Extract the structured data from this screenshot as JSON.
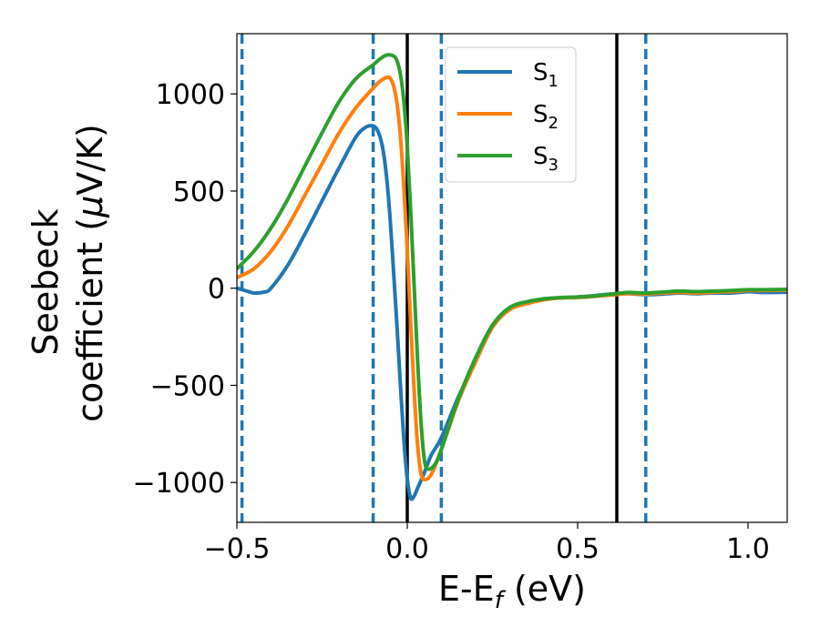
{
  "chart_data": {
    "type": "line",
    "title": "",
    "xlabel": "E-E",
    "xlabel_sub": "f",
    "xlabel_unit": " (eV)",
    "ylabel_line1": "Seebeck",
    "ylabel_line2": "coefficient  (",
    "ylabel_mu": "μ",
    "ylabel_unit": "V/K)",
    "xlim": [
      -0.5,
      1.115
    ],
    "ylim": [
      -1205,
      1310
    ],
    "xticks": [
      -0.5,
      0.0,
      0.5,
      1.0
    ],
    "xtick_labels": [
      "−0.5",
      "0.0",
      "0.5",
      "1.0"
    ],
    "yticks": [
      -1000,
      -500,
      0,
      500,
      1000
    ],
    "ytick_labels": [
      "−1000",
      "−500",
      "0",
      "500",
      "1000"
    ],
    "grid": false,
    "legend_placement": "top-center",
    "vlines_solid": [
      0.0,
      0.615
    ],
    "vlines_dashed": [
      -0.485,
      -0.1,
      0.1,
      0.7
    ],
    "vline_solid_color": "#000000",
    "vline_dashed_color": "#1f77b4",
    "series": [
      {
        "name": "S",
        "sub": "1",
        "color": "#1f77b4",
        "x": [
          -0.5,
          -0.47,
          -0.45,
          -0.42,
          -0.4,
          -0.35,
          -0.3,
          -0.25,
          -0.2,
          -0.15,
          -0.12,
          -0.1,
          -0.09,
          -0.08,
          -0.07,
          -0.06,
          -0.05,
          -0.04,
          -0.03,
          -0.02,
          -0.01,
          0.0,
          0.01,
          0.02,
          0.03,
          0.05,
          0.07,
          0.1,
          0.15,
          0.2,
          0.25,
          0.3,
          0.35,
          0.4,
          0.45,
          0.5,
          0.55,
          0.6,
          0.65,
          0.7,
          0.75,
          0.8,
          0.85,
          0.9,
          0.95,
          1.0,
          1.05,
          1.115
        ],
        "values": [
          0,
          -15,
          -25,
          -20,
          0,
          120,
          280,
          450,
          620,
          780,
          830,
          835,
          820,
          780,
          700,
          560,
          350,
          80,
          -200,
          -500,
          -780,
          -980,
          -1080,
          -1070,
          -1030,
          -950,
          -860,
          -770,
          -560,
          -380,
          -200,
          -110,
          -75,
          -55,
          -50,
          -45,
          -38,
          -30,
          -28,
          -33,
          -30,
          -25,
          -28,
          -24,
          -25,
          -18,
          -22,
          -20
        ]
      },
      {
        "name": "S",
        "sub": "2",
        "color": "#ff7f0e",
        "x": [
          -0.5,
          -0.45,
          -0.4,
          -0.35,
          -0.3,
          -0.25,
          -0.2,
          -0.15,
          -0.1,
          -0.08,
          -0.06,
          -0.05,
          -0.04,
          -0.03,
          -0.02,
          -0.01,
          0.0,
          0.01,
          0.02,
          0.03,
          0.04,
          0.05,
          0.07,
          0.1,
          0.15,
          0.2,
          0.25,
          0.3,
          0.35,
          0.4,
          0.45,
          0.5,
          0.55,
          0.6,
          0.65,
          0.7,
          0.75,
          0.8,
          0.85,
          0.9,
          0.95,
          1.0,
          1.05,
          1.115
        ],
        "values": [
          55,
          100,
          190,
          320,
          480,
          640,
          800,
          930,
          1030,
          1065,
          1085,
          1080,
          1040,
          950,
          780,
          520,
          200,
          -180,
          -520,
          -800,
          -950,
          -985,
          -960,
          -830,
          -580,
          -380,
          -200,
          -110,
          -80,
          -60,
          -50,
          -48,
          -42,
          -35,
          -28,
          -30,
          -25,
          -22,
          -25,
          -20,
          -18,
          -12,
          -12,
          -10
        ]
      },
      {
        "name": "S",
        "sub": "3",
        "color": "#2ca02c",
        "x": [
          -0.5,
          -0.45,
          -0.4,
          -0.35,
          -0.3,
          -0.25,
          -0.2,
          -0.15,
          -0.1,
          -0.08,
          -0.06,
          -0.04,
          -0.03,
          -0.02,
          -0.01,
          0.0,
          0.01,
          0.02,
          0.03,
          0.04,
          0.05,
          0.06,
          0.08,
          0.1,
          0.15,
          0.2,
          0.25,
          0.3,
          0.35,
          0.4,
          0.45,
          0.5,
          0.55,
          0.6,
          0.65,
          0.7,
          0.75,
          0.8,
          0.85,
          0.9,
          0.95,
          1.0,
          1.05,
          1.115
        ],
        "values": [
          100,
          190,
          310,
          460,
          630,
          800,
          960,
          1080,
          1150,
          1180,
          1200,
          1195,
          1170,
          1100,
          960,
          730,
          400,
          20,
          -360,
          -680,
          -880,
          -930,
          -910,
          -830,
          -570,
          -360,
          -190,
          -100,
          -70,
          -55,
          -48,
          -45,
          -40,
          -30,
          -22,
          -25,
          -20,
          -15,
          -18,
          -15,
          -12,
          -8,
          -8,
          -6
        ]
      }
    ]
  }
}
